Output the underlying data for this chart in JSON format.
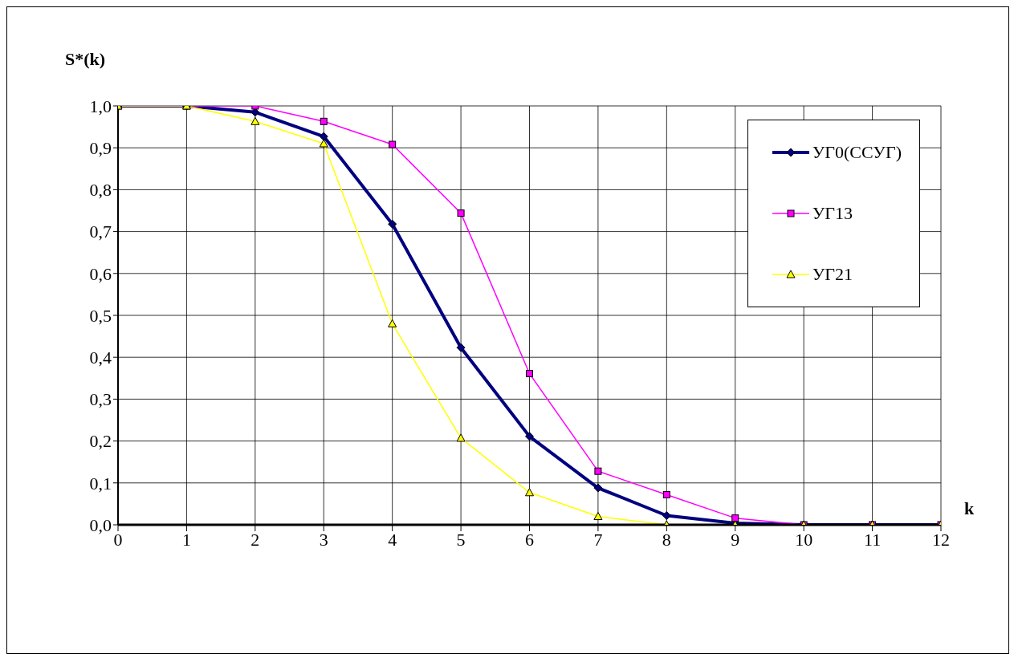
{
  "chart_data": {
    "type": "line",
    "ylabel": "S*(k)",
    "xlabel": "k",
    "x": [
      0,
      1,
      2,
      3,
      4,
      5,
      6,
      7,
      8,
      9,
      10,
      11,
      12
    ],
    "series": [
      {
        "name": "УГ0(ССУГ)",
        "color": "#000080",
        "marker": "diamond",
        "values": [
          1.0,
          1.0,
          0.985,
          0.927,
          0.718,
          0.423,
          0.211,
          0.088,
          0.022,
          0.004,
          0,
          0,
          0
        ]
      },
      {
        "name": "УГ13",
        "color": "#ff00ff",
        "marker": "square",
        "values": [
          1.0,
          1.0,
          1.0,
          0.963,
          0.908,
          0.744,
          0.361,
          0.128,
          0.072,
          0.016,
          0,
          0,
          0
        ]
      },
      {
        "name": "УГ21",
        "color": "#ffff00",
        "marker": "triangle",
        "values": [
          1.0,
          1.0,
          0.963,
          0.91,
          0.48,
          0.207,
          0.077,
          0.02,
          0,
          0,
          0,
          0,
          0
        ]
      }
    ],
    "xlim": [
      0,
      12
    ],
    "xticks": [
      0,
      1,
      2,
      3,
      4,
      5,
      6,
      7,
      8,
      9,
      10,
      11,
      12
    ],
    "ylim": [
      0,
      1
    ],
    "yticks": [
      {
        "value": 0,
        "label": "0,0"
      },
      {
        "value": 0.1,
        "label": "0,1"
      },
      {
        "value": 0.2,
        "label": "0,2"
      },
      {
        "value": 0.3,
        "label": "0,3"
      },
      {
        "value": 0.4,
        "label": "0,4"
      },
      {
        "value": 0.5,
        "label": "0,5"
      },
      {
        "value": 0.6,
        "label": "0,6"
      },
      {
        "value": 0.7,
        "label": "0,7"
      },
      {
        "value": 0.8,
        "label": "0,8"
      },
      {
        "value": 0.9,
        "label": "0,9"
      },
      {
        "value": 1,
        "label": "1,0"
      }
    ],
    "grid": true,
    "legend": "top right",
    "line_style": "solid"
  }
}
